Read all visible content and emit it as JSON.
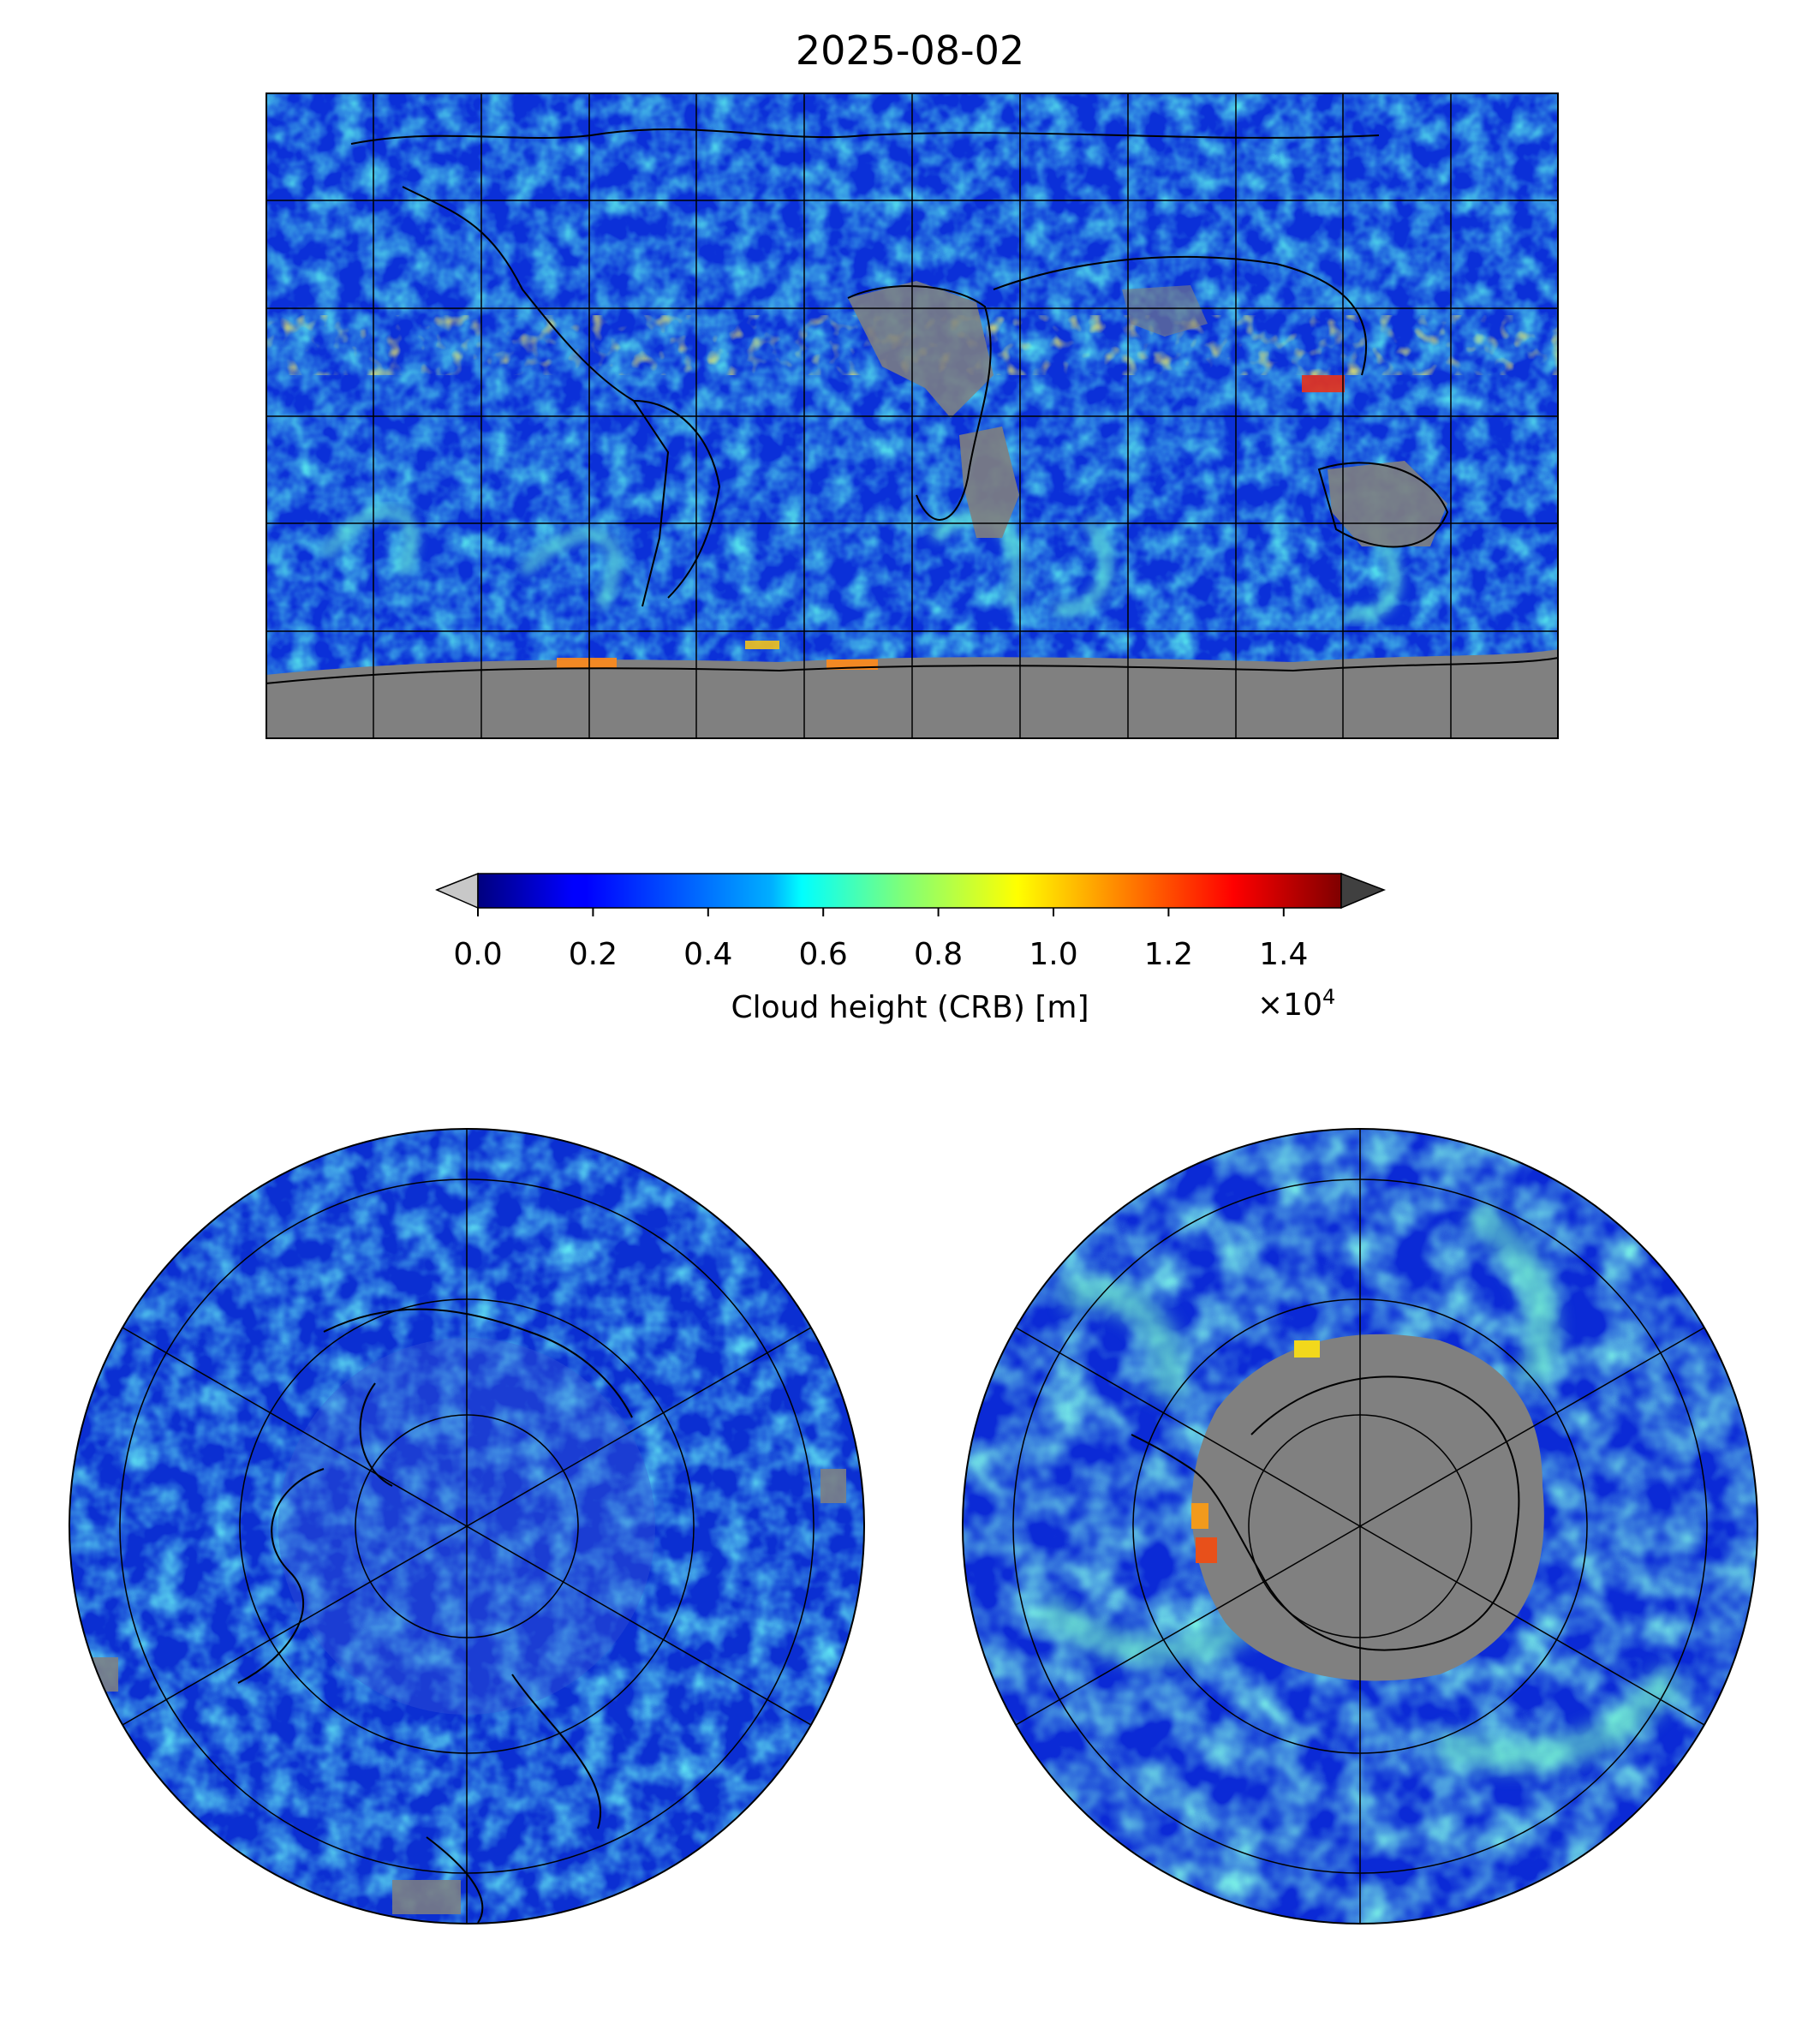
{
  "figure": {
    "title": "2025-08-02"
  },
  "colorbar": {
    "label": "Cloud height (CRB) [m]",
    "multiplier_prefix": "×10",
    "multiplier_exponent": "4",
    "ticks": [
      {
        "value": 0.0,
        "label": "0.0"
      },
      {
        "value": 0.2,
        "label": "0.2"
      },
      {
        "value": 0.4,
        "label": "0.4"
      },
      {
        "value": 0.6,
        "label": "0.6"
      },
      {
        "value": 0.8,
        "label": "0.8"
      },
      {
        "value": 1.0,
        "label": "1.0"
      },
      {
        "value": 1.2,
        "label": "1.2"
      },
      {
        "value": 1.4,
        "label": "1.4"
      }
    ],
    "range": [
      0.0,
      1.5
    ],
    "colormap": "jet",
    "under_color": "#c8c8c8",
    "over_color": "#404040",
    "nodata_color": "#808080"
  },
  "maps": [
    {
      "projection": "equirectangular",
      "extent": "global",
      "gridlines": true,
      "coastlines": true
    },
    {
      "projection": "north-polar-stereographic",
      "gridlines": true,
      "coastlines": true
    },
    {
      "projection": "south-polar-stereographic",
      "gridlines": true,
      "coastlines": true
    }
  ],
  "colors": {
    "ocean_low": "#0a2ad6",
    "cloud_mid": "#2ee6d2",
    "cloud_high": "#f2e81c",
    "cloud_top": "#d81a10",
    "land_nodata": "#808080",
    "coast": "#000000"
  }
}
